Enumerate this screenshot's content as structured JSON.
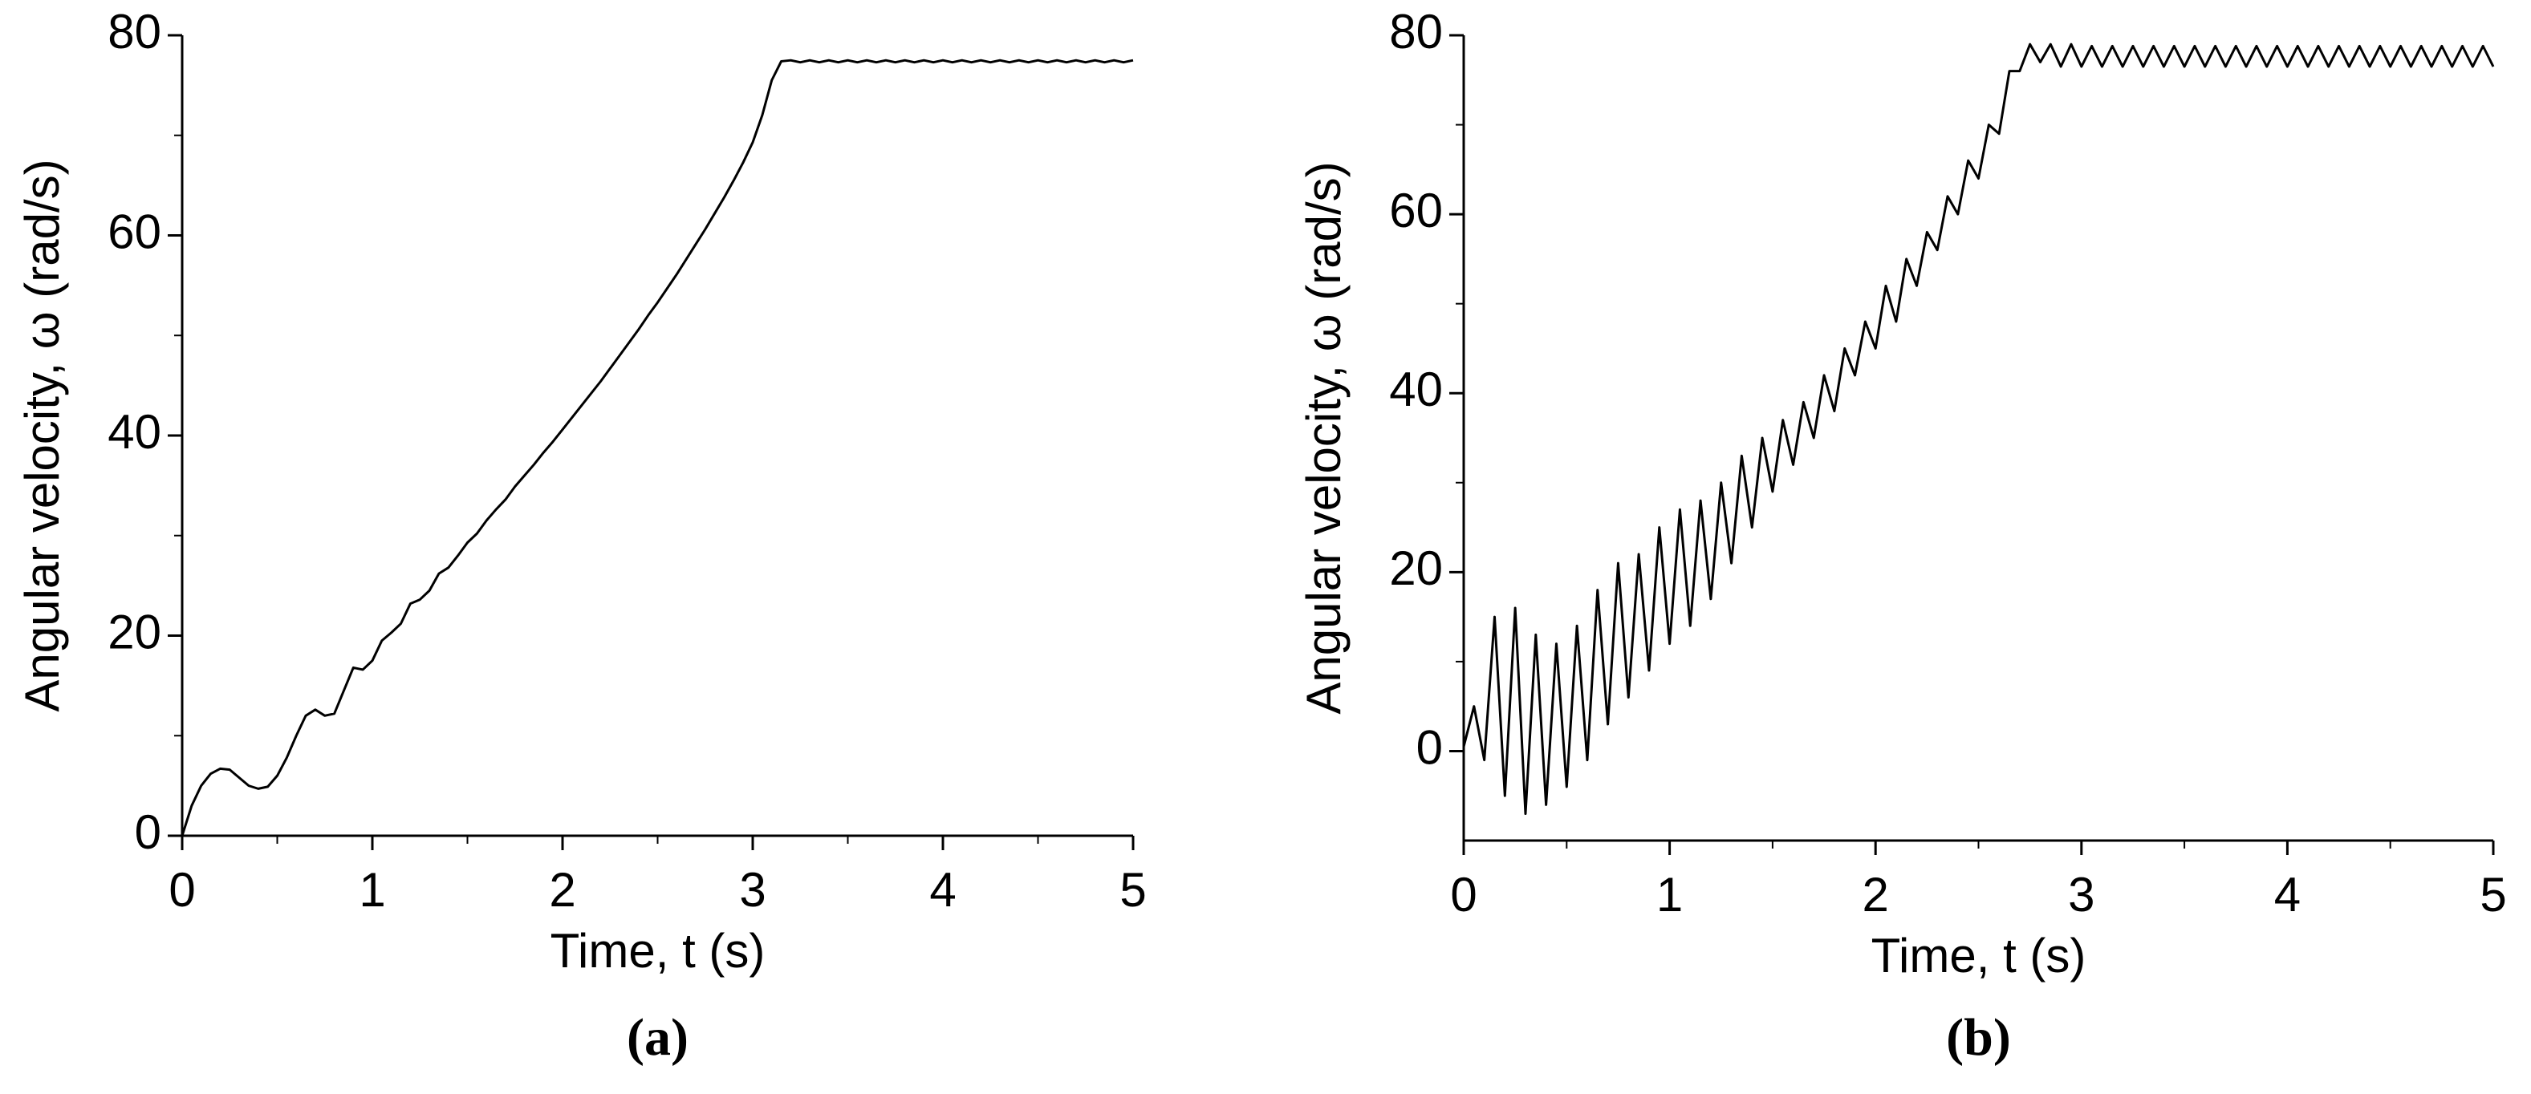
{
  "chart_data": [
    {
      "type": "line",
      "caption": "(a)",
      "x_label": "Time, t (s)",
      "y_label": "Angular velocity, ω (rad/s)",
      "color": "#000000",
      "x": [
        0,
        0.05,
        0.1,
        0.15,
        0.2,
        0.25,
        0.3,
        0.35,
        0.4,
        0.45,
        0.5,
        0.55,
        0.6,
        0.65,
        0.7,
        0.75,
        0.8,
        0.85,
        0.9,
        0.95,
        1,
        1.05,
        1.1,
        1.15,
        1.2,
        1.25,
        1.3,
        1.35,
        1.4,
        1.45,
        1.5,
        1.55,
        1.6,
        1.65,
        1.7,
        1.75,
        1.8,
        1.85,
        1.9,
        1.95,
        2,
        2.05,
        2.1,
        2.15,
        2.2,
        2.25,
        2.3,
        2.35,
        2.4,
        2.45,
        2.5,
        2.55,
        2.6,
        2.65,
        2.7,
        2.75,
        2.8,
        2.85,
        2.9,
        2.95,
        3,
        3.05,
        3.1,
        3.15,
        3.2,
        3.25,
        3.3,
        3.35,
        3.4,
        3.45,
        3.5,
        3.55,
        3.6,
        3.65,
        3.7,
        3.75,
        3.8,
        3.85,
        3.9,
        3.95,
        4,
        4.05,
        4.1,
        4.15,
        4.2,
        4.25,
        4.3,
        4.35,
        4.4,
        4.45,
        4.5,
        4.55,
        4.6,
        4.65,
        4.7,
        4.75,
        4.8,
        4.85,
        4.9,
        4.95,
        5
      ],
      "values": [
        0,
        3,
        5,
        6.2,
        6.7,
        6.6,
        5.8,
        5,
        4.7,
        4.9,
        6,
        7.8,
        10,
        12,
        12.6,
        12,
        12.2,
        14.5,
        16.8,
        16.6,
        17.5,
        19.5,
        20.3,
        21.2,
        23.2,
        23.6,
        24.5,
        26.2,
        26.8,
        28,
        29.3,
        30.2,
        31.5,
        32.6,
        33.6,
        34.9,
        36,
        37.1,
        38.3,
        39.4,
        40.6,
        41.8,
        43,
        44.2,
        45.4,
        46.7,
        48,
        49.3,
        50.6,
        52,
        53.3,
        54.7,
        56.1,
        57.6,
        59.1,
        60.6,
        62.2,
        63.8,
        65.5,
        67.3,
        69.3,
        72,
        75.5,
        77.4,
        77.5,
        77.3,
        77.5,
        77.3,
        77.5,
        77.3,
        77.5,
        77.3,
        77.5,
        77.3,
        77.5,
        77.3,
        77.5,
        77.3,
        77.5,
        77.3,
        77.5,
        77.3,
        77.5,
        77.3,
        77.5,
        77.3,
        77.5,
        77.3,
        77.5,
        77.3,
        77.5,
        77.3,
        77.5,
        77.3,
        77.5,
        77.3,
        77.5,
        77.3,
        77.5,
        77.3,
        77.5
      ],
      "xlim": [
        0,
        5
      ],
      "xticks": [
        0,
        1,
        2,
        3,
        4,
        5
      ],
      "ylim": [
        0,
        80
      ],
      "yticks": [
        0,
        20,
        40,
        60,
        80
      ]
    },
    {
      "type": "line",
      "caption": "(b)",
      "x_label": "Time, t (s)",
      "y_label": "Angular velocity, ω (rad/s)",
      "color": "#000000",
      "x": [
        0,
        0.05,
        0.1,
        0.15,
        0.2,
        0.25,
        0.3,
        0.35,
        0.4,
        0.45,
        0.5,
        0.55,
        0.6,
        0.65,
        0.7,
        0.75,
        0.8,
        0.85,
        0.9,
        0.95,
        1,
        1.05,
        1.1,
        1.15,
        1.2,
        1.25,
        1.3,
        1.35,
        1.4,
        1.45,
        1.5,
        1.55,
        1.6,
        1.65,
        1.7,
        1.75,
        1.8,
        1.85,
        1.9,
        1.95,
        2,
        2.05,
        2.1,
        2.15,
        2.2,
        2.25,
        2.3,
        2.35,
        2.4,
        2.45,
        2.5,
        2.55,
        2.6,
        2.65,
        2.7,
        2.75,
        2.8,
        2.85,
        2.9,
        2.95,
        3,
        3.05,
        3.1,
        3.15,
        3.2,
        3.25,
        3.3,
        3.35,
        3.4,
        3.45,
        3.5,
        3.55,
        3.6,
        3.65,
        3.7,
        3.75,
        3.8,
        3.85,
        3.9,
        3.95,
        4,
        4.05,
        4.1,
        4.15,
        4.2,
        4.25,
        4.3,
        4.35,
        4.4,
        4.45,
        4.5,
        4.55,
        4.6,
        4.65,
        4.7,
        4.75,
        4.8,
        4.85,
        4.9,
        4.95,
        5
      ],
      "values": [
        0.5,
        5,
        -1,
        15,
        -5,
        16,
        -7,
        13,
        -6,
        12,
        -4,
        14,
        -1,
        18,
        3,
        21,
        6,
        22,
        9,
        25,
        12,
        27,
        14,
        28,
        17,
        30,
        21,
        33,
        25,
        35,
        29,
        37,
        32,
        39,
        35,
        42,
        38,
        45,
        42,
        48,
        45,
        52,
        48,
        55,
        52,
        58,
        56,
        62,
        60,
        66,
        64,
        70,
        69,
        76,
        76,
        79,
        77,
        79,
        76.5,
        79,
        76.5,
        78.8,
        76.5,
        78.8,
        76.5,
        78.8,
        76.5,
        78.8,
        76.5,
        78.8,
        76.5,
        78.8,
        76.5,
        78.8,
        76.5,
        78.8,
        76.5,
        78.8,
        76.5,
        78.8,
        76.5,
        78.8,
        76.5,
        78.8,
        76.5,
        78.8,
        76.5,
        78.8,
        76.5,
        78.8,
        76.5,
        78.8,
        76.5,
        78.8,
        76.5,
        78.8,
        76.5,
        78.8,
        76.5,
        78.8,
        76.5
      ],
      "xlim": [
        0,
        5
      ],
      "xticks": [
        0,
        1,
        2,
        3,
        4,
        5
      ],
      "ylim": [
        -10,
        80
      ],
      "yticks": [
        0,
        20,
        40,
        60,
        80
      ]
    }
  ]
}
